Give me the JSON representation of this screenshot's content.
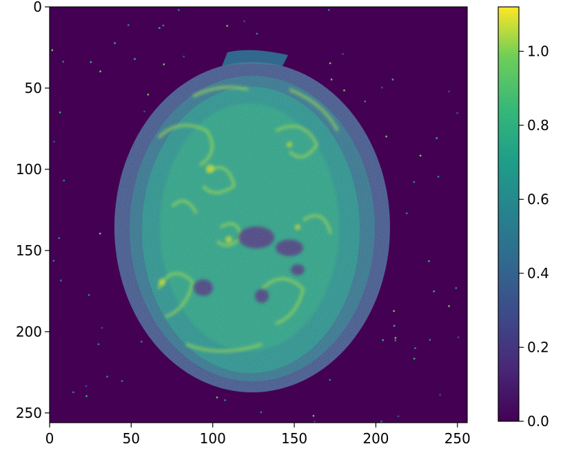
{
  "chart_data": {
    "type": "heatmap",
    "title": "",
    "xlabel": "",
    "ylabel": "",
    "image_size": [
      256,
      256
    ],
    "xlim": [
      0,
      256
    ],
    "ylim": [
      256,
      0
    ],
    "x_ticks": [
      0,
      50,
      100,
      150,
      200,
      250
    ],
    "y_ticks": [
      0,
      50,
      100,
      150,
      200,
      250
    ],
    "x_tick_labels": [
      "0",
      "50",
      "100",
      "150",
      "200",
      "250"
    ],
    "y_tick_labels": [
      "0",
      "50",
      "100",
      "150",
      "200",
      "250"
    ],
    "colormap": "viridis",
    "color_range": [
      0.0,
      1.12
    ],
    "colorbar": {
      "ticks": [
        0.0,
        0.2,
        0.4,
        0.6,
        0.8,
        1.0
      ],
      "tick_labels": [
        "0.0",
        "0.2",
        "0.4",
        "0.6",
        "0.8",
        "1.0"
      ],
      "position": "right"
    },
    "grid": false,
    "content": "axial MRI brain slice intensity map; background 0, skull rim ~0.1-0.3, tissue ~0.4-0.9, peak ~1.1"
  },
  "colors": {
    "background_low": "#440154",
    "mid": "#21918c",
    "high": "#fde725"
  }
}
